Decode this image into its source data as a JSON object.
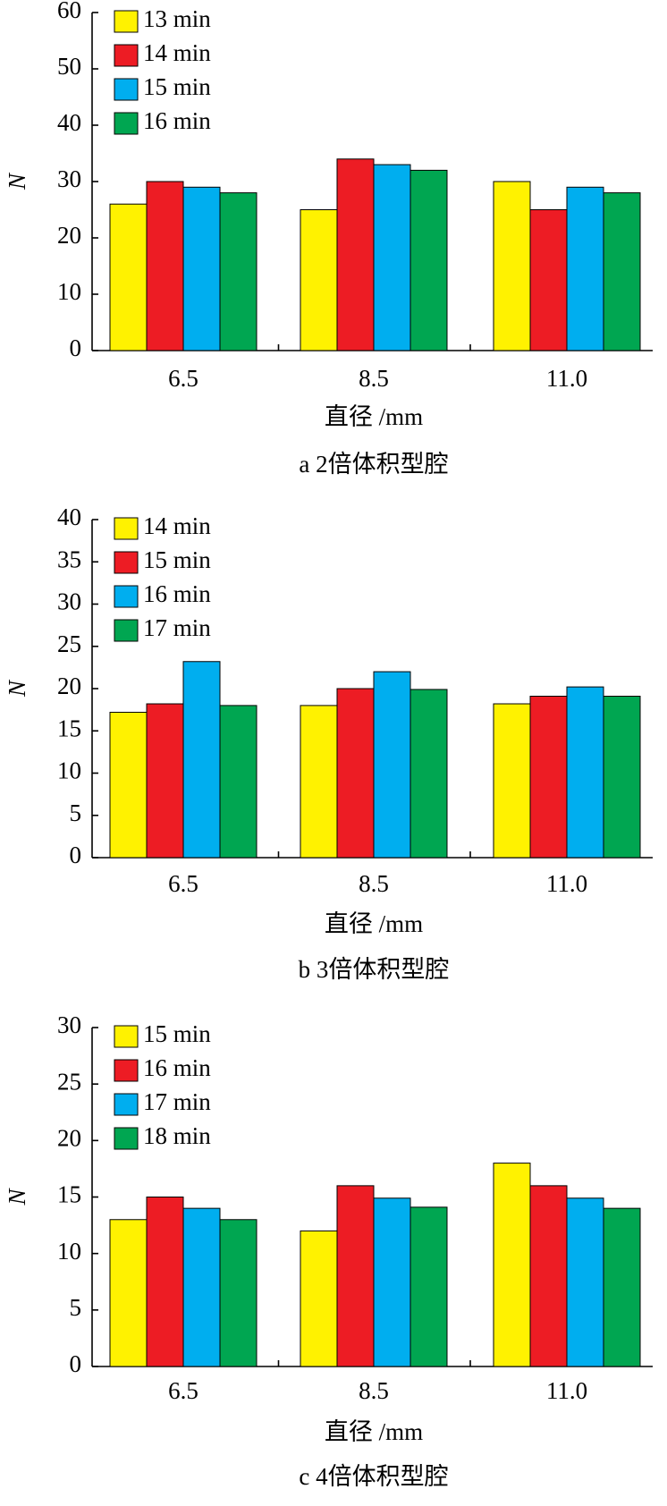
{
  "chart_data": [
    {
      "type": "bar",
      "y_label": "N",
      "x_label": "直径 /mm",
      "caption": "a 2倍体积型腔",
      "categories": [
        "6.5",
        "8.5",
        "11.0"
      ],
      "ylim": [
        0,
        60
      ],
      "yticks": [
        0,
        10,
        20,
        30,
        40,
        50,
        60
      ],
      "series": [
        {
          "name": "13 min",
          "color": "#fff200",
          "values": [
            26,
            25,
            30
          ]
        },
        {
          "name": "14 min",
          "color": "#ed1c24",
          "values": [
            30,
            34,
            25
          ]
        },
        {
          "name": "15 min",
          "color": "#00aeef",
          "values": [
            29,
            33,
            29
          ]
        },
        {
          "name": "16 min",
          "color": "#00a651",
          "values": [
            28,
            32,
            28
          ]
        }
      ]
    },
    {
      "type": "bar",
      "y_label": "N",
      "x_label": "直径 /mm",
      "caption": "b 3倍体积型腔",
      "categories": [
        "6.5",
        "8.5",
        "11.0"
      ],
      "ylim": [
        0,
        40
      ],
      "yticks": [
        0,
        5,
        10,
        15,
        20,
        25,
        30,
        35,
        40
      ],
      "series": [
        {
          "name": "14 min",
          "color": "#fff200",
          "values": [
            17.2,
            18,
            18.2
          ]
        },
        {
          "name": "15 min",
          "color": "#ed1c24",
          "values": [
            18.2,
            20,
            19.1
          ]
        },
        {
          "name": "16 min",
          "color": "#00aeef",
          "values": [
            23.2,
            22,
            20.2
          ]
        },
        {
          "name": "17 min",
          "color": "#00a651",
          "values": [
            18,
            19.9,
            19.1
          ]
        }
      ]
    },
    {
      "type": "bar",
      "y_label": "N",
      "x_label": "直径 /mm",
      "caption": "c 4倍体积型腔",
      "categories": [
        "6.5",
        "8.5",
        "11.0"
      ],
      "ylim": [
        0,
        30
      ],
      "yticks": [
        0,
        5,
        10,
        15,
        20,
        25,
        30
      ],
      "series": [
        {
          "name": "15 min",
          "color": "#fff200",
          "values": [
            13,
            12,
            18
          ]
        },
        {
          "name": "16 min",
          "color": "#ed1c24",
          "values": [
            15,
            16,
            16
          ]
        },
        {
          "name": "17 min",
          "color": "#00aeef",
          "values": [
            14,
            14.9,
            14.9
          ]
        },
        {
          "name": "18 min",
          "color": "#00a651",
          "values": [
            13,
            14.1,
            14
          ]
        }
      ]
    }
  ]
}
